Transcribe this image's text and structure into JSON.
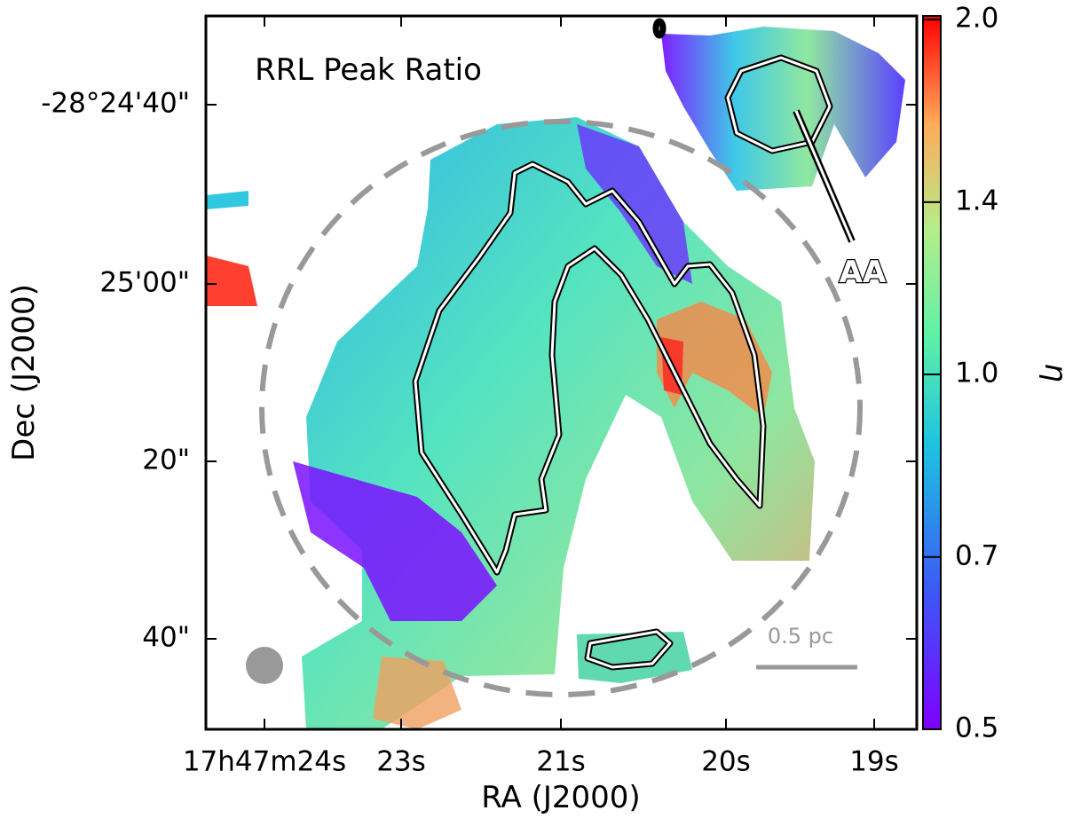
{
  "chart_data": {
    "type": "image",
    "title": "RRL Peak Ratio",
    "x_label": "RA (J2000)",
    "y_label": "Dec (J2000)",
    "x_tick_labels": [
      "17h47m24s",
      "23s",
      "21s",
      "20s",
      "19s"
    ],
    "y_tick_labels": [
      "-28°24'40\"",
      "25'00\"",
      "20\"",
      "40\""
    ],
    "colorbar": {
      "label": "η",
      "lim": [
        0.5,
        2
      ],
      "log_scale": true,
      "ticks": [
        0.5,
        0.7,
        {
          "value": 1,
          "label": "1.0"
        },
        1.4,
        {
          "value": 2,
          "label": "2.0"
        }
      ]
    },
    "annotations": [
      "AA",
      "0.5 pc"
    ]
  }
}
